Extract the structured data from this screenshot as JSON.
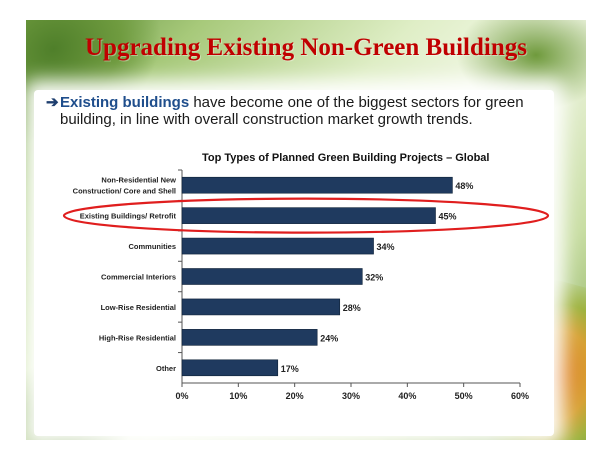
{
  "slide": {
    "title": "Upgrading Existing Non-Green Buildings",
    "bullet": {
      "highlight": "Existing buildings",
      "rest": " have become one of the biggest sectors for green building, in line with overall construction market growth trends."
    }
  },
  "colors": {
    "title": "#c00000",
    "bar": "#1f3a5f",
    "highlight_ellipse": "#e01e1e"
  },
  "chart_data": {
    "type": "bar",
    "orientation": "horizontal",
    "title": "Top Types of Planned Green Building Projects – Global",
    "categories": [
      [
        "Non-Residential New",
        "Construction/ Core and Shell"
      ],
      [
        "Existing Buildings/ Retrofit"
      ],
      [
        "Communities"
      ],
      [
        "Commercial Interiors"
      ],
      [
        "Low-Rise Residential"
      ],
      [
        "High-Rise Residential"
      ],
      [
        "Other"
      ]
    ],
    "values": [
      48,
      45,
      34,
      32,
      28,
      24,
      17
    ],
    "value_labels": [
      "48%",
      "45%",
      "34%",
      "32%",
      "28%",
      "24%",
      "17%"
    ],
    "xlim": [
      0,
      60
    ],
    "xticks": [
      "0%",
      "10%",
      "20%",
      "30%",
      "40%",
      "50%",
      "60%"
    ],
    "highlighted_category": "Existing Buildings/ Retrofit",
    "grid": false,
    "legend": "none"
  }
}
